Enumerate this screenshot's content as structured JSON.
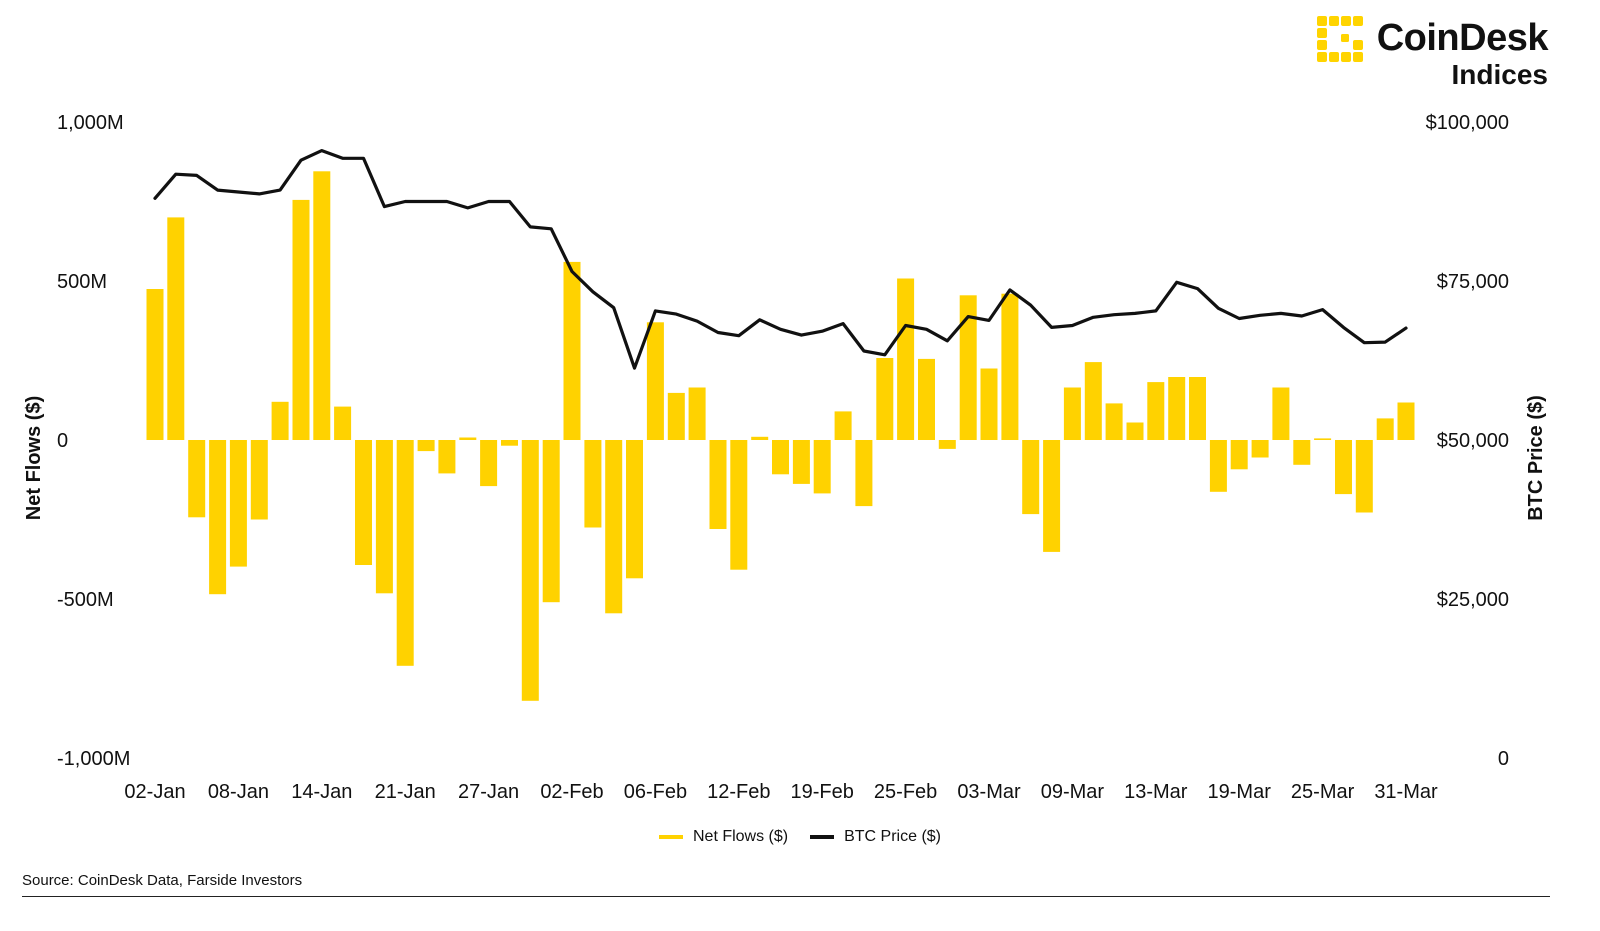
{
  "brand": {
    "name": "CoinDesk",
    "sub": "Indices",
    "logo_icon": "coindesk-logo-icon",
    "color": "#FFD400"
  },
  "colors": {
    "bars": "#FFD200",
    "line": "#111111"
  },
  "legend": [
    {
      "label": "Net Flows ($)",
      "color": "#FFD200"
    },
    {
      "label": "BTC Price ($)",
      "color": "#111111"
    }
  ],
  "source": "Source: CoinDesk Data, Farside Investors",
  "chart_data": {
    "type": "bar",
    "grid": false,
    "legend_position": "bottom",
    "ylabel": "Net Flows ($)",
    "y2label": "BTC Price ($)",
    "ylim": [
      -1000,
      1000
    ],
    "y2lim": [
      0,
      100000
    ],
    "y_ticks": [
      "1,000M",
      "500M",
      "0",
      "-500M",
      "-1,000M"
    ],
    "y2_ticks": [
      "$100,000",
      "$75,000",
      "$50,000",
      "$25,000",
      "0"
    ],
    "x_tick_labels": [
      "02-Jan",
      "08-Jan",
      "14-Jan",
      "21-Jan",
      "27-Jan",
      "02-Feb",
      "06-Feb",
      "12-Feb",
      "19-Feb",
      "25-Feb",
      "03-Mar",
      "09-Mar",
      "13-Mar",
      "19-Mar",
      "25-Mar",
      "31-Mar"
    ],
    "x_tick_indices": [
      0,
      4,
      8,
      12,
      16,
      20,
      24,
      28,
      32,
      36,
      40,
      44,
      48,
      52,
      56,
      60
    ],
    "series": [
      {
        "name": "Net Flows ($)",
        "type": "bar",
        "unit": "M",
        "values": [
          475,
          700,
          -243,
          -485,
          -398,
          -250,
          120,
          755,
          845,
          105,
          -393,
          -482,
          -710,
          -35,
          -105,
          8,
          -145,
          -18,
          -820,
          -510,
          560,
          -275,
          -545,
          -435,
          370,
          148,
          165,
          -280,
          -408,
          10,
          -108,
          -138,
          -168,
          90,
          -208,
          258,
          508,
          255,
          -28,
          455,
          225,
          460,
          -233,
          -352,
          165,
          245,
          115,
          55,
          182,
          198,
          198,
          -163,
          -92,
          -55,
          165,
          -78,
          5,
          -170,
          -228,
          68,
          118
        ]
      },
      {
        "name": "BTC Price ($)",
        "type": "line",
        "unit": "$",
        "values": [
          88000,
          91800,
          91600,
          89300,
          89000,
          88700,
          89300,
          94000,
          95500,
          94300,
          94300,
          86700,
          87500,
          87500,
          87500,
          86500,
          87500,
          87500,
          83500,
          83200,
          76500,
          73300,
          70800,
          61300,
          70300,
          69800,
          68700,
          66900,
          66400,
          68900,
          67400,
          66500,
          67100,
          68300,
          64000,
          63400,
          68000,
          67400,
          65600,
          69400,
          68800,
          73600,
          71200,
          67700,
          68000,
          69300,
          69700,
          69900,
          70300,
          74800,
          73800,
          70700,
          69100,
          69600,
          69900,
          69500,
          70500,
          67700,
          65300,
          65400,
          67600
        ]
      }
    ]
  }
}
